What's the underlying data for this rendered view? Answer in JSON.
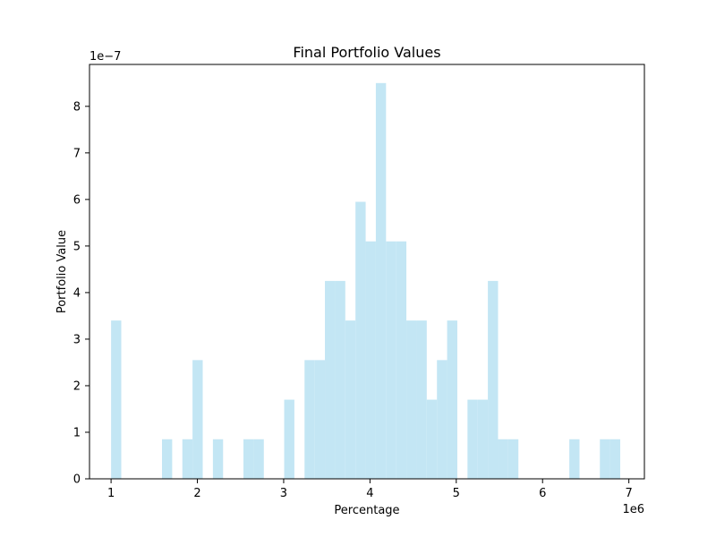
{
  "chart_data": {
    "type": "bar",
    "title": "Final Portfolio Values",
    "xlabel": "Percentage",
    "ylabel": "Portfolio Value",
    "x_offset_label": "1e6",
    "y_offset_label": "1e−7",
    "xlim": [
      0.75,
      7.18
    ],
    "ylim": [
      0,
      8.9
    ],
    "xticks": [
      1,
      2,
      3,
      4,
      5,
      6,
      7
    ],
    "xtick_labels": [
      "1",
      "2",
      "3",
      "4",
      "5",
      "6",
      "7"
    ],
    "yticks": [
      0,
      1,
      2,
      3,
      4,
      5,
      6,
      7,
      8
    ],
    "ytick_labels": [
      "0",
      "1",
      "2",
      "3",
      "4",
      "5",
      "6",
      "7",
      "8"
    ],
    "bin_width": 0.118,
    "bar_color": "#c3e6f4",
    "grid": false,
    "series": [
      {
        "bins": [
          {
            "x0": 1.0,
            "x1": 1.118,
            "value": 3.4
          },
          {
            "x0": 1.59,
            "x1": 1.708,
            "value": 0.85
          },
          {
            "x0": 1.826,
            "x1": 1.944,
            "value": 0.85
          },
          {
            "x0": 1.944,
            "x1": 2.062,
            "value": 2.55
          },
          {
            "x0": 2.18,
            "x1": 2.298,
            "value": 0.85
          },
          {
            "x0": 2.534,
            "x1": 2.652,
            "value": 0.85
          },
          {
            "x0": 2.652,
            "x1": 2.77,
            "value": 0.85
          },
          {
            "x0": 3.006,
            "x1": 3.124,
            "value": 1.7
          },
          {
            "x0": 3.242,
            "x1": 3.36,
            "value": 2.55
          },
          {
            "x0": 3.36,
            "x1": 3.478,
            "value": 2.55
          },
          {
            "x0": 3.478,
            "x1": 3.596,
            "value": 4.25
          },
          {
            "x0": 3.596,
            "x1": 3.714,
            "value": 4.25
          },
          {
            "x0": 3.714,
            "x1": 3.832,
            "value": 3.4
          },
          {
            "x0": 3.832,
            "x1": 3.95,
            "value": 5.95
          },
          {
            "x0": 3.95,
            "x1": 4.068,
            "value": 5.1
          },
          {
            "x0": 4.068,
            "x1": 4.186,
            "value": 8.5
          },
          {
            "x0": 4.186,
            "x1": 4.304,
            "value": 5.1
          },
          {
            "x0": 4.304,
            "x1": 4.422,
            "value": 5.1
          },
          {
            "x0": 4.422,
            "x1": 4.54,
            "value": 3.4
          },
          {
            "x0": 4.54,
            "x1": 4.658,
            "value": 3.4
          },
          {
            "x0": 4.658,
            "x1": 4.776,
            "value": 1.7
          },
          {
            "x0": 4.776,
            "x1": 4.894,
            "value": 2.55
          },
          {
            "x0": 4.894,
            "x1": 5.012,
            "value": 3.4
          },
          {
            "x0": 5.13,
            "x1": 5.248,
            "value": 1.7
          },
          {
            "x0": 5.248,
            "x1": 5.366,
            "value": 1.7
          },
          {
            "x0": 5.366,
            "x1": 5.484,
            "value": 4.25
          },
          {
            "x0": 5.484,
            "x1": 5.602,
            "value": 0.85
          },
          {
            "x0": 5.602,
            "x1": 5.72,
            "value": 0.85
          },
          {
            "x0": 6.31,
            "x1": 6.428,
            "value": 0.85
          },
          {
            "x0": 6.664,
            "x1": 6.782,
            "value": 0.85
          },
          {
            "x0": 6.782,
            "x1": 6.9,
            "value": 0.85
          }
        ]
      }
    ]
  }
}
